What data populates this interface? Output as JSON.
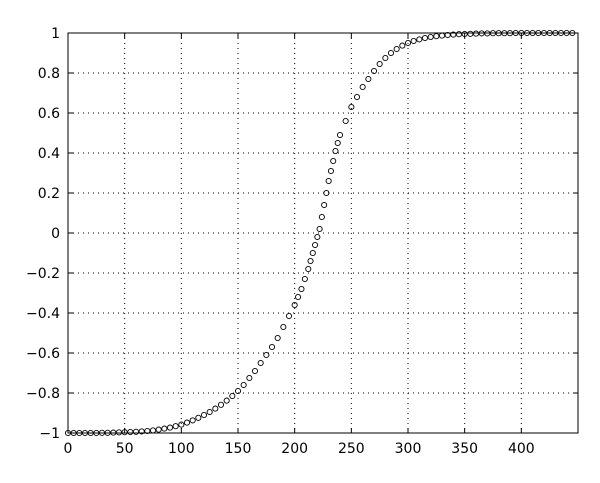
{
  "chart_data": {
    "type": "scatter",
    "title": "",
    "xlabel": "",
    "ylabel": "",
    "xlim": [
      0,
      450
    ],
    "ylim": [
      -1,
      1
    ],
    "grid": true,
    "marker": "circle",
    "xticks": [
      0,
      50,
      100,
      150,
      200,
      250,
      300,
      350,
      400
    ],
    "xtick_labels": [
      "0",
      "50",
      "100",
      "150",
      "200",
      "250",
      "300",
      "350",
      "400"
    ],
    "yticks": [
      1,
      0.8,
      0.6,
      0.4,
      0.2,
      0,
      -0.2,
      -0.4,
      -0.6,
      -0.8,
      -1
    ],
    "ytick_labels": [
      "1",
      "0.8",
      "0.6",
      "0.4",
      "0.2",
      "0",
      "−0.2",
      "−0.4",
      "−0.6",
      "−0.8",
      "−1"
    ],
    "series": [
      {
        "x": [
          0,
          5,
          10,
          15,
          20,
          25,
          30,
          35,
          40,
          45,
          50,
          55,
          60,
          65,
          70,
          75,
          80,
          85,
          90,
          95,
          100,
          105,
          110,
          115,
          120,
          125,
          130,
          135,
          140,
          145,
          150,
          155,
          160,
          165,
          170,
          175,
          180,
          185,
          190,
          195,
          200,
          203,
          206,
          209,
          212,
          214,
          216,
          218,
          220,
          222,
          224,
          226,
          228,
          230,
          232,
          234,
          236,
          238,
          240,
          245,
          250,
          255,
          260,
          265,
          270,
          275,
          280,
          285,
          290,
          295,
          300,
          305,
          310,
          315,
          320,
          325,
          330,
          335,
          340,
          345,
          350,
          355,
          360,
          365,
          370,
          375,
          380,
          385,
          390,
          395,
          400,
          405,
          410,
          415,
          420,
          425,
          430,
          435,
          440,
          445
        ],
        "y": [
          -1.0,
          -1.0,
          -1.0,
          -1.0,
          -1.0,
          -1.0,
          -0.999,
          -0.999,
          -0.998,
          -0.997,
          -0.996,
          -0.995,
          -0.994,
          -0.992,
          -0.99,
          -0.987,
          -0.983,
          -0.978,
          -0.973,
          -0.966,
          -0.958,
          -0.948,
          -0.937,
          -0.924,
          -0.91,
          -0.895,
          -0.878,
          -0.859,
          -0.838,
          -0.815,
          -0.79,
          -0.76,
          -0.725,
          -0.69,
          -0.65,
          -0.61,
          -0.57,
          -0.525,
          -0.47,
          -0.415,
          -0.36,
          -0.32,
          -0.28,
          -0.23,
          -0.18,
          -0.14,
          -0.1,
          -0.06,
          -0.02,
          0.02,
          0.08,
          0.14,
          0.2,
          0.26,
          0.31,
          0.36,
          0.41,
          0.45,
          0.49,
          0.56,
          0.63,
          0.68,
          0.73,
          0.77,
          0.81,
          0.845,
          0.875,
          0.9,
          0.92,
          0.937,
          0.95,
          0.96,
          0.968,
          0.975,
          0.98,
          0.984,
          0.987,
          0.99,
          0.992,
          0.994,
          0.995,
          0.996,
          0.997,
          0.998,
          0.998,
          0.999,
          0.999,
          0.999,
          0.999,
          1.0,
          1.0,
          1.0,
          1.0,
          1.0,
          1.0,
          1.0,
          1.0,
          1.0,
          1.0,
          1.0
        ]
      }
    ]
  }
}
